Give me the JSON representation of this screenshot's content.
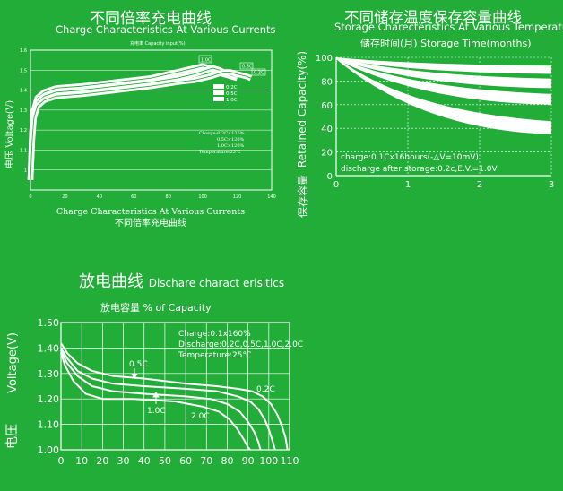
{
  "page": {
    "background": "#22ad38",
    "foreground": "#ffffff"
  },
  "chart_data": [
    {
      "type": "line",
      "title": "不同倍率充电曲线",
      "subtitle": "Charge Characteristics At Various Currents",
      "inner_title": "充电率  Capacity input(%)",
      "xlabel": "Charge Characteristics At Various Currents",
      "xlabel_cn": "不同倍率充电曲线",
      "ylabel": "电压 Voltage(V)",
      "xlim": [
        0,
        140
      ],
      "ylim": [
        0.9,
        1.6
      ],
      "xticks": [
        0,
        20,
        40,
        60,
        80,
        100,
        120,
        140
      ],
      "yticks": [
        1,
        1.1,
        1.2,
        1.3,
        1.4,
        1.5,
        1.6
      ],
      "legend": [
        "0.2C",
        "0.5C",
        "1.0C"
      ],
      "annotation": [
        "Charge:0.2C×125%",
        "0.5C×120%",
        "1.0C×120%",
        "Temperature:25℃"
      ],
      "curve_labels": [
        "1.0C",
        "0.5C",
        "0.2C"
      ],
      "grid": true,
      "series": [
        {
          "name": "1.0C",
          "x": [
            0,
            1,
            2,
            4,
            8,
            15,
            30,
            50,
            70,
            85,
            95,
            100,
            104,
            108,
            112,
            116,
            120
          ],
          "y": [
            0.95,
            1.2,
            1.3,
            1.36,
            1.39,
            1.41,
            1.42,
            1.44,
            1.46,
            1.49,
            1.51,
            1.52,
            1.51,
            1.49,
            1.48,
            1.47,
            1.46
          ]
        },
        {
          "name": "0.5C",
          "x": [
            0,
            1,
            2,
            4,
            8,
            15,
            30,
            50,
            70,
            85,
            95,
            102,
            106,
            110,
            114,
            118,
            120
          ],
          "y": [
            0.95,
            1.18,
            1.28,
            1.34,
            1.37,
            1.39,
            1.4,
            1.42,
            1.44,
            1.46,
            1.48,
            1.5,
            1.51,
            1.5,
            1.48,
            1.47,
            1.47
          ]
        },
        {
          "name": "0.2C",
          "x": [
            0,
            1,
            2,
            4,
            8,
            15,
            30,
            50,
            70,
            85,
            95,
            105,
            112,
            116,
            120,
            125,
            128
          ],
          "y": [
            0.95,
            1.15,
            1.26,
            1.32,
            1.35,
            1.37,
            1.38,
            1.4,
            1.42,
            1.44,
            1.45,
            1.47,
            1.49,
            1.49,
            1.48,
            1.47,
            1.46
          ]
        }
      ]
    },
    {
      "type": "area",
      "title": "不同储存温度保存容量曲线",
      "subtitle": "Storage Charecteristics At Various Temperature",
      "xlabel": "储存时间(月)    Storage Time(months)",
      "ylabel": "Retained Capacity(%)",
      "ylabel_cn": "保存容量",
      "xlim": [
        0,
        3
      ],
      "ylim": [
        0,
        100
      ],
      "xticks": [
        0,
        1,
        2,
        3
      ],
      "yticks": [
        0,
        20,
        40,
        60,
        80,
        100
      ],
      "annotation": [
        "charge:0.1Cx16hours(-△V=10mV)",
        "discharge after storage:0.2c,E.V.=1.0V"
      ],
      "grid": true,
      "bands": [
        {
          "end_low": 86,
          "end_high": 93
        },
        {
          "end_low": 74,
          "end_high": 82
        },
        {
          "end_low": 60,
          "end_high": 69
        },
        {
          "end_low": 35,
          "end_high": 46
        }
      ]
    },
    {
      "type": "line",
      "title": "放电曲线",
      "subtitle": "Dischare charact erisitics",
      "inner_title": "放电容量    % of Capacity",
      "ylabel": "Voltage(V)",
      "ylabel_cn": "电压",
      "xlim": [
        0,
        110
      ],
      "ylim": [
        1.0,
        1.5
      ],
      "xticks": [
        0,
        10,
        20,
        30,
        40,
        50,
        60,
        70,
        80,
        90,
        100,
        110
      ],
      "yticks": [
        1.0,
        1.1,
        1.2,
        1.3,
        1.4,
        1.5
      ],
      "ytick_labels": [
        "1.00",
        "1.10",
        "1.20",
        "1.30",
        "1.40",
        "1.50"
      ],
      "annotation": [
        "Charge:0.1x160%",
        "Discharge:0.2C,0.5C,1.0C,2.0C",
        "Temperature:25℃"
      ],
      "grid": true,
      "series": [
        {
          "name": "0.2C",
          "x": [
            0,
            3,
            8,
            15,
            25,
            40,
            60,
            75,
            85,
            92,
            97,
            101,
            104,
            106,
            108,
            109
          ],
          "y": [
            1.42,
            1.38,
            1.34,
            1.31,
            1.29,
            1.28,
            1.26,
            1.25,
            1.24,
            1.23,
            1.21,
            1.18,
            1.14,
            1.1,
            1.05,
            1.0
          ]
        },
        {
          "name": "0.5C",
          "x": [
            0,
            3,
            8,
            15,
            25,
            40,
            60,
            75,
            85,
            91,
            95,
            98,
            100,
            102,
            103
          ],
          "y": [
            1.4,
            1.36,
            1.31,
            1.28,
            1.26,
            1.25,
            1.24,
            1.23,
            1.21,
            1.19,
            1.16,
            1.12,
            1.08,
            1.03,
            1.0
          ]
        },
        {
          "name": "1.0C",
          "x": [
            0,
            3,
            8,
            15,
            25,
            40,
            60,
            72,
            80,
            86,
            90,
            93,
            95,
            96
          ],
          "y": [
            1.39,
            1.34,
            1.29,
            1.25,
            1.23,
            1.22,
            1.21,
            1.2,
            1.18,
            1.15,
            1.11,
            1.07,
            1.03,
            1.0
          ]
        },
        {
          "name": "2.0C",
          "x": [
            0,
            2,
            6,
            12,
            20,
            35,
            55,
            68,
            76,
            81,
            85,
            88,
            90,
            91
          ],
          "y": [
            1.38,
            1.33,
            1.27,
            1.22,
            1.2,
            1.2,
            1.19,
            1.17,
            1.15,
            1.12,
            1.08,
            1.04,
            1.01,
            1.0
          ]
        }
      ]
    }
  ]
}
